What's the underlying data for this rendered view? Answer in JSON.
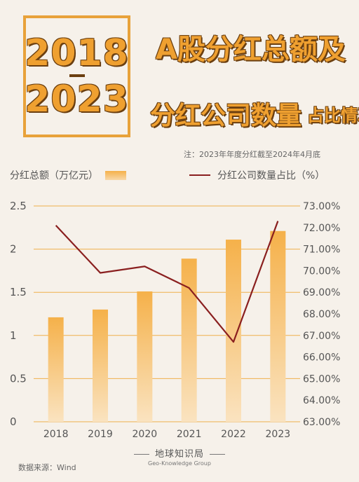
{
  "header": {
    "year_start": "2018",
    "year_end": "2023",
    "title_line1": "A股分红总额及",
    "title_line2": "分红公司数量",
    "title_line2_small": "占比情况",
    "note": "注：2023年年度分红截至2024年4月底"
  },
  "legend": {
    "bars_label": "分红总额（万亿元）",
    "line_label": "分红公司数量占比（%）"
  },
  "footer": {
    "brand_cn": "地球知识局",
    "brand_en": "Geo-Knowledge Group",
    "source": "数据来源：Wind"
  },
  "colors": {
    "accent": "#efa030",
    "bar_top": "#f5b14a",
    "bar_bottom": "#fae3c0",
    "line": "#8a1f1f",
    "grid": "#efb04a"
  },
  "chart_data": {
    "type": "bar",
    "categories": [
      "2018",
      "2019",
      "2020",
      "2021",
      "2022",
      "2023"
    ],
    "series": [
      {
        "name": "分红总额（万亿元）",
        "type": "bar",
        "axis": "left",
        "values": [
          1.21,
          1.3,
          1.51,
          1.89,
          2.11,
          2.21
        ]
      },
      {
        "name": "分红公司数量占比（%）",
        "type": "line",
        "axis": "right",
        "values": [
          72.1,
          69.9,
          70.2,
          69.2,
          66.7,
          72.3
        ]
      }
    ],
    "y_left": {
      "ylim": [
        0,
        2.5
      ],
      "ticks": [
        "0",
        "0.5",
        "1",
        "1.5",
        "2",
        "2.5"
      ]
    },
    "y_right": {
      "ylim": [
        63,
        73
      ],
      "ticks": [
        "63.00%",
        "64.00%",
        "65.00%",
        "66.00%",
        "67.00%",
        "68.00%",
        "69.00%",
        "70.00%",
        "71.00%",
        "72.00%",
        "73.00%"
      ]
    },
    "grid": true,
    "legend": "top"
  }
}
